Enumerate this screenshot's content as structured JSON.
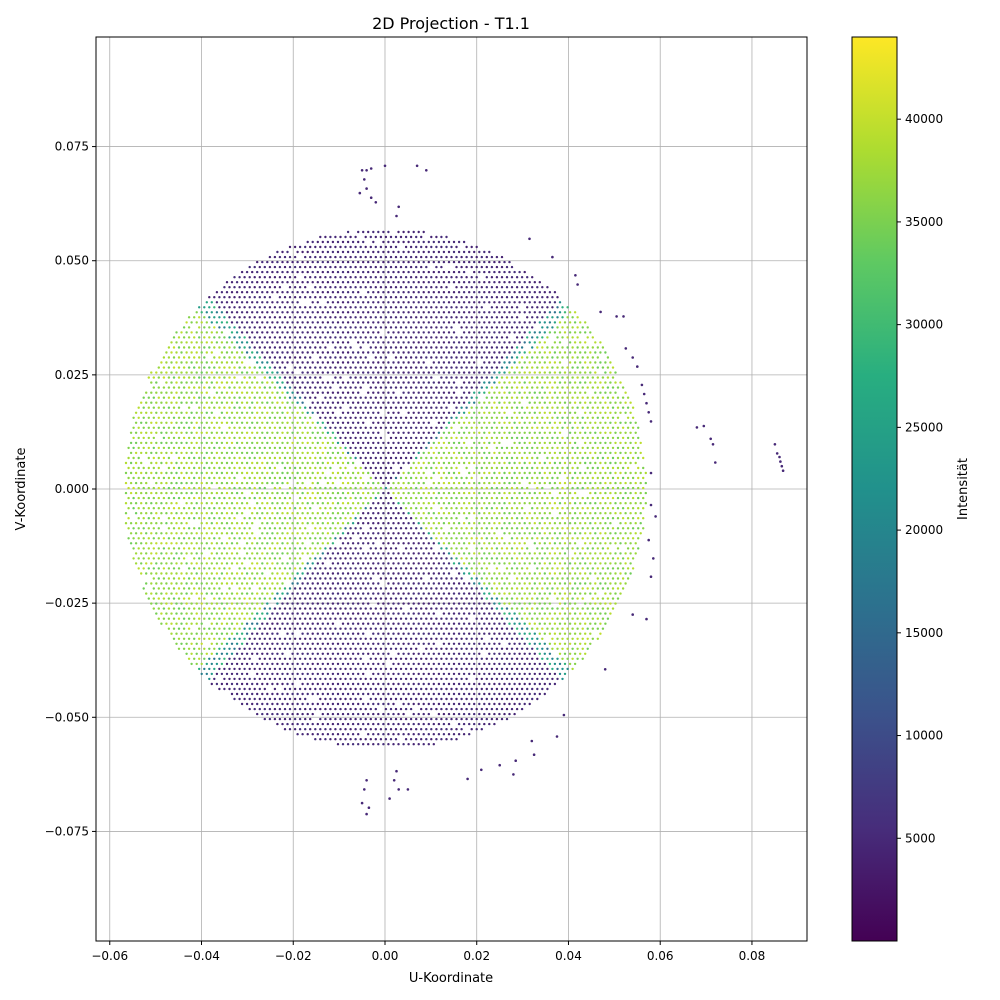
{
  "chart_data": {
    "type": "scatter",
    "title": "2D Projection - T1.1",
    "xlabel": "U-Koordinate",
    "ylabel": "V-Koordinate",
    "xlim": [
      -0.063,
      0.092
    ],
    "ylim": [
      -0.099,
      0.099
    ],
    "x_ticks": [
      -0.06,
      -0.04,
      -0.02,
      0.0,
      0.02,
      0.04,
      0.06,
      0.08
    ],
    "x_tick_labels": [
      "−0.06",
      "−0.04",
      "−0.02",
      "0.00",
      "0.02",
      "0.04",
      "0.06",
      "0.08"
    ],
    "y_ticks": [
      -0.075,
      -0.05,
      -0.025,
      0.0,
      0.025,
      0.05,
      0.075
    ],
    "y_tick_labels": [
      "−0.075",
      "−0.050",
      "−0.025",
      "0.000",
      "0.025",
      "0.050",
      "0.075"
    ],
    "grid": true,
    "colormap": "viridis",
    "colorbar": {
      "label": "Intensität",
      "range": [
        0,
        44000
      ],
      "ticks": [
        5000,
        10000,
        15000,
        20000,
        25000,
        30000,
        35000,
        40000
      ],
      "tick_labels": [
        "5000",
        "10000",
        "15000",
        "20000",
        "25000",
        "30000",
        "35000",
        "40000"
      ]
    },
    "main_cluster": {
      "description_shape": "disc",
      "center": [
        0.0,
        0.0
      ],
      "radius": 0.057,
      "grid_spacing": 0.0011,
      "bright_cone_half_angle_deg": 44,
      "low_intensity": 5000,
      "high_intensity": 40000
    },
    "outlier_points": [
      [
        0.068,
        0.0135
      ],
      [
        0.0695,
        0.0138
      ],
      [
        0.071,
        0.011
      ],
      [
        0.0715,
        0.0098
      ],
      [
        0.072,
        0.0058
      ],
      [
        0.085,
        0.0098
      ],
      [
        0.0855,
        0.0078
      ],
      [
        0.086,
        0.007
      ],
      [
        0.0862,
        0.006
      ],
      [
        0.0865,
        0.005
      ],
      [
        0.0868,
        0.004
      ],
      [
        0.0315,
        0.0548
      ],
      [
        0.0365,
        0.0508
      ],
      [
        0.0415,
        0.0468
      ],
      [
        0.042,
        0.0448
      ],
      [
        0.047,
        0.0388
      ],
      [
        0.0505,
        0.0378
      ],
      [
        0.052,
        0.0378
      ],
      [
        0.0525,
        0.0308
      ],
      [
        0.054,
        0.0288
      ],
      [
        0.055,
        0.0268
      ],
      [
        0.056,
        0.0228
      ],
      [
        0.0565,
        0.0208
      ],
      [
        0.057,
        0.0188
      ],
      [
        0.0575,
        0.0168
      ],
      [
        0.058,
        0.0148
      ],
      [
        -0.004,
        0.0698
      ],
      [
        -0.005,
        0.0698
      ],
      [
        -0.003,
        0.0702
      ],
      [
        -0.0045,
        0.0678
      ],
      [
        -0.004,
        0.0658
      ],
      [
        -0.0055,
        0.0648
      ],
      [
        -0.003,
        0.0638
      ],
      [
        -0.002,
        0.0628
      ],
      [
        0.0,
        0.0708
      ],
      [
        0.007,
        0.0708
      ],
      [
        0.009,
        0.0698
      ],
      [
        0.003,
        0.0618
      ],
      [
        0.0025,
        0.0598
      ],
      [
        -0.004,
        -0.0638
      ],
      [
        -0.0045,
        -0.0658
      ],
      [
        -0.005,
        -0.0688
      ],
      [
        -0.0035,
        -0.0698
      ],
      [
        -0.004,
        -0.0712
      ],
      [
        0.002,
        -0.0638
      ],
      [
        0.0025,
        -0.0618
      ],
      [
        0.003,
        -0.0658
      ],
      [
        0.005,
        -0.0658
      ],
      [
        0.001,
        -0.0678
      ],
      [
        0.018,
        -0.0635
      ],
      [
        0.021,
        -0.0615
      ],
      [
        0.025,
        -0.0605
      ],
      [
        0.028,
        -0.0625
      ],
      [
        0.0285,
        -0.0595
      ],
      [
        0.0325,
        -0.0582
      ],
      [
        0.032,
        -0.0552
      ],
      [
        0.0375,
        -0.0542
      ],
      [
        0.039,
        -0.0495
      ],
      [
        0.048,
        -0.0395
      ],
      [
        0.054,
        -0.0275
      ],
      [
        0.057,
        -0.0285
      ],
      [
        0.058,
        -0.0192
      ],
      [
        0.0585,
        -0.0152
      ],
      [
        0.0575,
        -0.0112
      ],
      [
        0.059,
        -0.006
      ],
      [
        0.058,
        0.0035
      ],
      [
        0.058,
        -0.0035
      ]
    ]
  }
}
